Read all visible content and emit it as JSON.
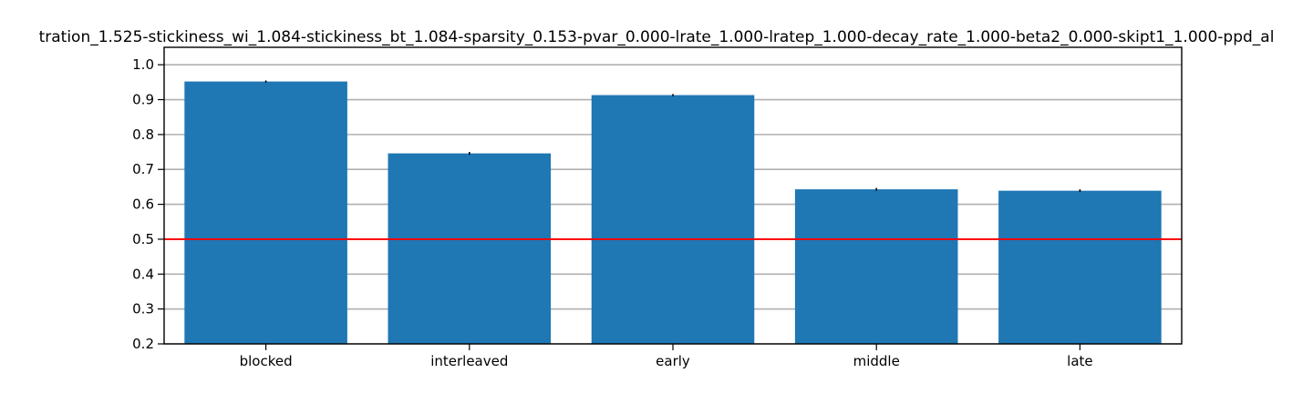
{
  "chart_data": {
    "type": "bar",
    "title": "tration_1.525-stickiness_wi_1.084-stickiness_bt_1.084-sparsity_0.153-pvar_0.000-lrate_1.000-lratep_1.000-decay_rate_1.000-beta2_0.000-skipt1_1.000-ppd_al",
    "categories": [
      "blocked",
      "interleaved",
      "early",
      "middle",
      "late"
    ],
    "values": [
      0.952,
      0.746,
      0.913,
      0.643,
      0.639
    ],
    "errors": [
      0.003,
      0.004,
      0.003,
      0.004,
      0.004
    ],
    "xlabel": "",
    "ylabel": "",
    "ylim": [
      0.2,
      1.05
    ],
    "yticks": [
      "0.2",
      "0.3",
      "0.4",
      "0.5",
      "0.6",
      "0.7",
      "0.8",
      "0.9",
      "1.0"
    ],
    "grid": "horizontal",
    "reference_line": {
      "y": 0.5,
      "color": "#ff0000"
    },
    "colors": {
      "bar": "#1f77b4",
      "grid": "#b0b0b0",
      "error": "#000000"
    }
  }
}
